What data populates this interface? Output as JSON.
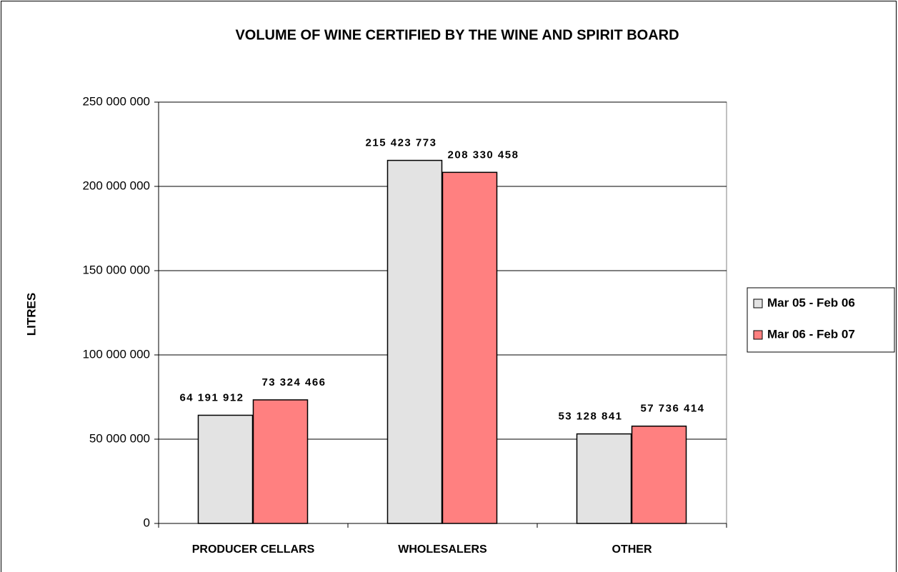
{
  "chart_data": {
    "type": "bar",
    "title": "VOLUME OF WINE CERTIFIED BY THE WINE AND SPIRIT BOARD",
    "y_label": "LITRES",
    "categories": [
      "PRODUCER CELLARS",
      "WHOLESALERS",
      "OTHER"
    ],
    "series": [
      {
        "name": "Mar 05 - Feb 06",
        "color": "#e3e3e3",
        "values": [
          64191912,
          215423773,
          53128841
        ],
        "value_labels": [
          "64 191 912",
          "215 423 773",
          "53 128 841"
        ]
      },
      {
        "name": "Mar 06 - Feb 07",
        "color": "#ff8080",
        "values": [
          73324466,
          208330458,
          57736414
        ],
        "value_labels": [
          "73 324 466",
          "208 330 458",
          "57 736 414"
        ]
      }
    ],
    "ylim": [
      0,
      250000000
    ],
    "yticks": [
      0,
      {
        "value": 50000000,
        "label": "50 000 000"
      },
      {
        "value": 100000000,
        "label": "100 000 000"
      },
      {
        "value": 150000000,
        "label": "150 000 000"
      },
      {
        "value": 200000000,
        "label": "200 000 000"
      },
      {
        "value": 250000000,
        "label": "250 000 000"
      }
    ],
    "grid": true,
    "legend": "right"
  }
}
